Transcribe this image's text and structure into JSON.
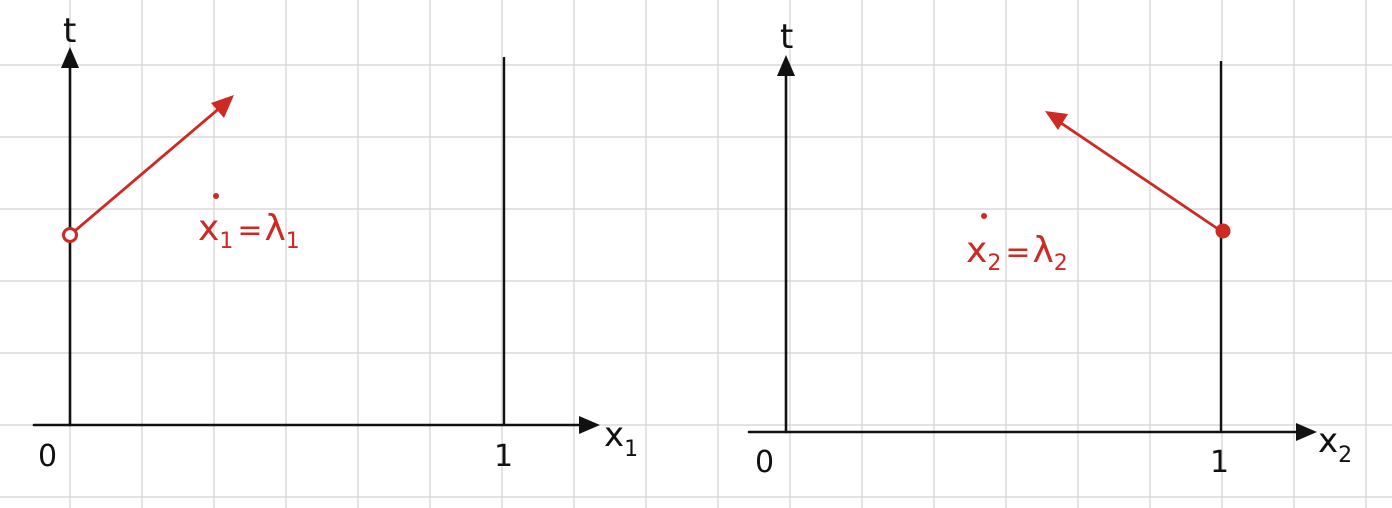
{
  "colors": {
    "grid": "#d2d2d2",
    "ink": "#111111",
    "accent": "#cc2a22",
    "paper": "#ffffff"
  },
  "panels": [
    {
      "t_label": "t",
      "x_label_main": "x",
      "x_label_sub": "1",
      "origin_label": "0",
      "one_label": "1",
      "eq_var": "x",
      "eq_var_sub": "1",
      "eq_equals": "=",
      "eq_rhs": "λ",
      "eq_rhs_sub": "1"
    },
    {
      "t_label": "t",
      "x_label_main": "x",
      "x_label_sub": "2",
      "origin_label": "0",
      "one_label": "1",
      "eq_var": "x",
      "eq_var_sub": "2",
      "eq_equals": "=",
      "eq_rhs": "λ",
      "eq_rhs_sub": "2"
    }
  ]
}
